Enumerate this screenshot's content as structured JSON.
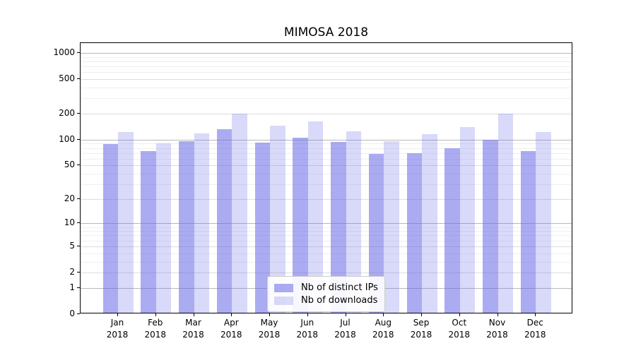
{
  "chart_data": {
    "type": "bar",
    "title": "MIMOSA 2018",
    "categories": [
      "Jan",
      "Feb",
      "Mar",
      "Apr",
      "May",
      "Jun",
      "Jul",
      "Aug",
      "Sep",
      "Oct",
      "Nov",
      "Dec"
    ],
    "x_year": "2018",
    "series": [
      {
        "name": "Nb of distinct IPs",
        "color": "rgba(102,102,230,0.55)",
        "values": [
          86,
          71,
          93,
          128,
          89,
          101,
          90,
          66,
          67,
          76,
          96,
          71
        ]
      },
      {
        "name": "Nb of downloads",
        "color": "rgba(102,102,230,0.25)",
        "values": [
          119,
          87,
          113,
          193,
          140,
          156,
          120,
          93,
          111,
          136,
          193,
          117
        ]
      }
    ],
    "yscale": "log1p",
    "ylim": [
      0,
      1300
    ],
    "y_ticks": [
      0,
      1,
      2,
      5,
      10,
      20,
      50,
      100,
      200,
      500,
      1000
    ],
    "y_minor_ticks": [
      3,
      4,
      6,
      7,
      8,
      9,
      30,
      40,
      60,
      70,
      80,
      90,
      300,
      400,
      600,
      700,
      800,
      900
    ],
    "grid": true,
    "legend_position": "lower center",
    "colors": {
      "grid_pow10": "#b8b8b8",
      "grid_major": "#dcdcdc",
      "grid_minor": "#efefef",
      "axis": "#000000",
      "text": "#000000"
    }
  }
}
